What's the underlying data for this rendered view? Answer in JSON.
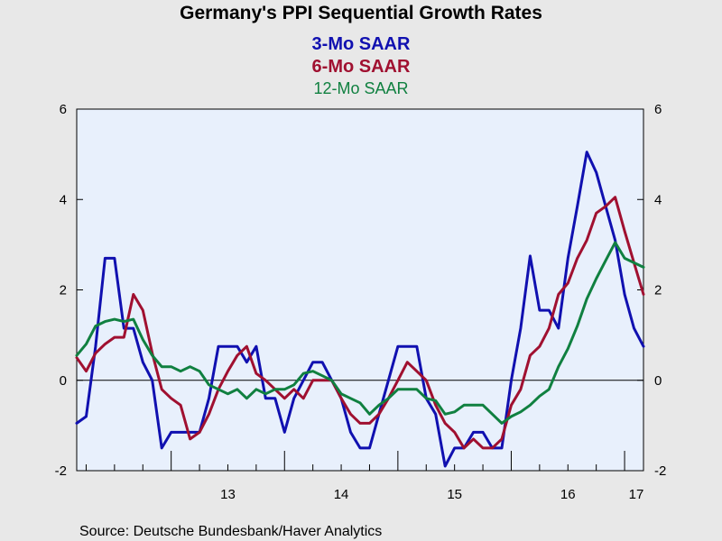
{
  "chart_data": {
    "type": "line",
    "title": "Germany's PPI Sequential Growth Rates",
    "source": "Source:  Deutsche Bundesbank/Haver Analytics",
    "x_tick_labels": [
      "13",
      "14",
      "15",
      "16",
      "17"
    ],
    "x_start": "2012-03",
    "x_end": "2017-03",
    "ylim": [
      -2,
      6
    ],
    "y_ticks": [
      -2,
      0,
      2,
      4,
      6
    ],
    "y_tick_labels": [
      "-2",
      "0",
      "2",
      "4",
      "6"
    ],
    "grid": false,
    "zero_line": true,
    "dual_y_axis": true,
    "background": "#e8f0fc",
    "series": [
      {
        "name": "3-Mo SAAR",
        "color": "#1010b0",
        "values": [
          -0.95,
          -0.8,
          0.75,
          2.7,
          2.7,
          1.15,
          1.15,
          0.4,
          0.0,
          -1.5,
          -1.15,
          -1.15,
          -1.15,
          -1.15,
          -0.4,
          0.75,
          0.75,
          0.75,
          0.4,
          0.75,
          -0.4,
          -0.4,
          -1.15,
          -0.4,
          0.0,
          0.4,
          0.4,
          0.0,
          -0.4,
          -1.15,
          -1.5,
          -1.5,
          -0.75,
          0.0,
          0.75,
          0.75,
          0.75,
          -0.4,
          -0.75,
          -1.9,
          -1.5,
          -1.5,
          -1.15,
          -1.15,
          -1.5,
          -1.5,
          0.0,
          1.15,
          2.75,
          1.55,
          1.55,
          1.15,
          2.7,
          3.85,
          5.05,
          4.6,
          3.85,
          3.1,
          1.9,
          1.15,
          0.75
        ]
      },
      {
        "name": "6-Mo SAAR",
        "color": "#a01030",
        "values": [
          0.5,
          0.2,
          0.6,
          0.8,
          0.95,
          0.95,
          1.9,
          1.55,
          0.6,
          -0.2,
          -0.4,
          -0.55,
          -1.3,
          -1.15,
          -0.75,
          -0.2,
          0.2,
          0.55,
          0.75,
          0.15,
          0.0,
          -0.2,
          -0.4,
          -0.2,
          -0.4,
          0.0,
          0.0,
          0.0,
          -0.4,
          -0.75,
          -0.95,
          -0.95,
          -0.75,
          -0.4,
          0.0,
          0.4,
          0.2,
          0.0,
          -0.55,
          -0.95,
          -1.15,
          -1.5,
          -1.3,
          -1.5,
          -1.5,
          -1.3,
          -0.55,
          -0.2,
          0.55,
          0.75,
          1.15,
          1.9,
          2.15,
          2.7,
          3.1,
          3.7,
          3.85,
          4.05,
          3.3,
          2.6,
          1.9
        ]
      },
      {
        "name": "12-Mo SAAR",
        "color": "#108040",
        "values": [
          0.55,
          0.8,
          1.2,
          1.3,
          1.35,
          1.3,
          1.35,
          0.9,
          0.55,
          0.3,
          0.3,
          0.2,
          0.3,
          0.2,
          -0.1,
          -0.2,
          -0.3,
          -0.2,
          -0.4,
          -0.2,
          -0.3,
          -0.2,
          -0.2,
          -0.1,
          0.15,
          0.2,
          0.1,
          0.0,
          -0.3,
          -0.4,
          -0.5,
          -0.75,
          -0.55,
          -0.4,
          -0.2,
          -0.2,
          -0.2,
          -0.4,
          -0.45,
          -0.75,
          -0.7,
          -0.55,
          -0.55,
          -0.55,
          -0.75,
          -0.95,
          -0.8,
          -0.7,
          -0.55,
          -0.35,
          -0.2,
          0.3,
          0.7,
          1.2,
          1.8,
          2.25,
          2.65,
          3.05,
          2.7,
          2.6,
          2.5
        ]
      }
    ]
  }
}
